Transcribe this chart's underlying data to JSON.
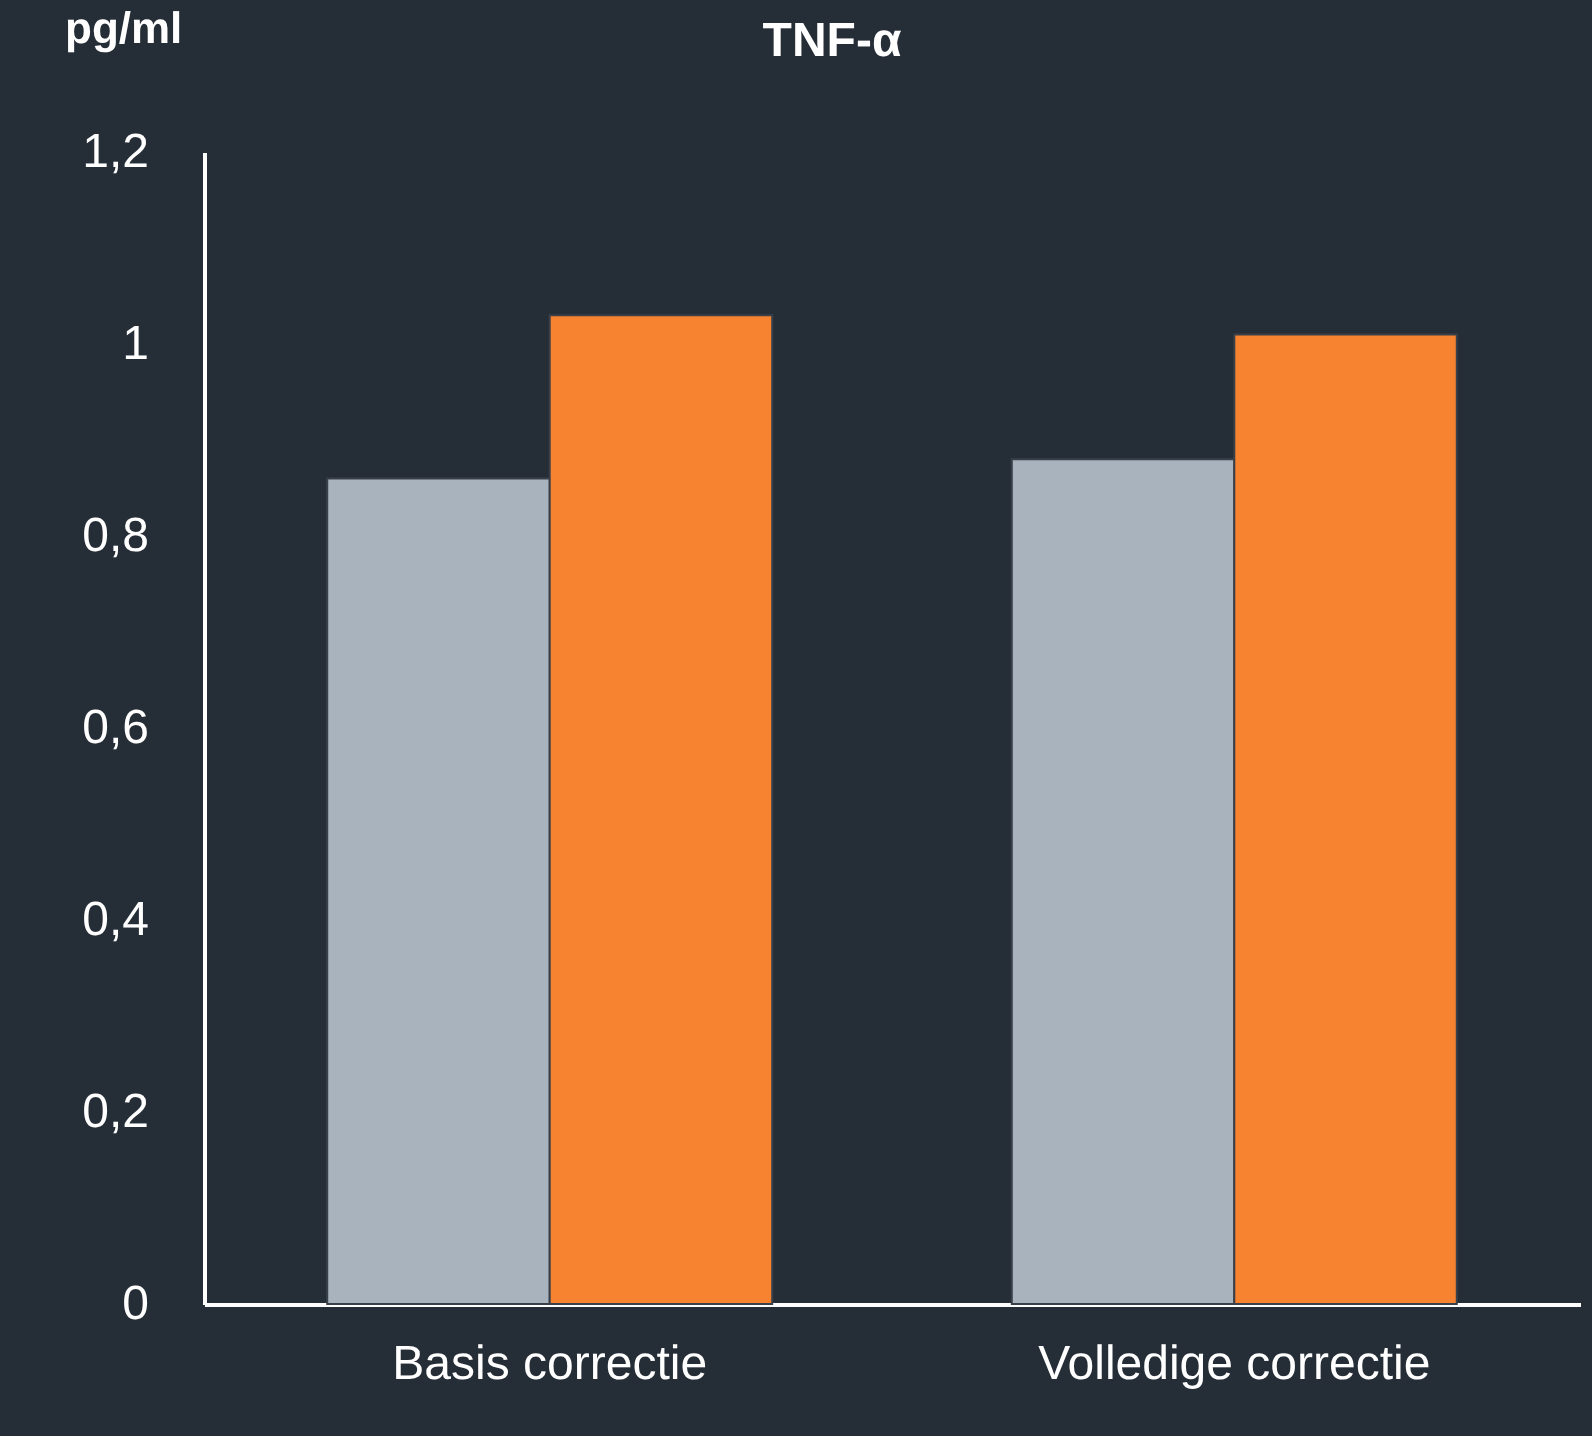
{
  "chart_data": {
    "type": "bar",
    "title": "TNF-α",
    "ylabel": "pg/ml",
    "categories": [
      "Basis correctie",
      "Volledige correctie"
    ],
    "series": [
      {
        "color": "#a9b3be",
        "values": [
          0.86,
          0.88
        ]
      },
      {
        "color": "#f7822f",
        "values": [
          1.03,
          1.01
        ]
      }
    ],
    "ylim": [
      0,
      1.2
    ],
    "yticks": [
      0,
      {
        "value": 0.2,
        "label": "0,2"
      },
      {
        "value": 0.4,
        "label": "0,4"
      },
      {
        "value": 0.6,
        "label": "0,6"
      },
      {
        "value": 0.8,
        "label": "0,8"
      },
      1,
      {
        "value": 1.2,
        "label": "1,2"
      }
    ],
    "grid": false,
    "legend": false
  }
}
